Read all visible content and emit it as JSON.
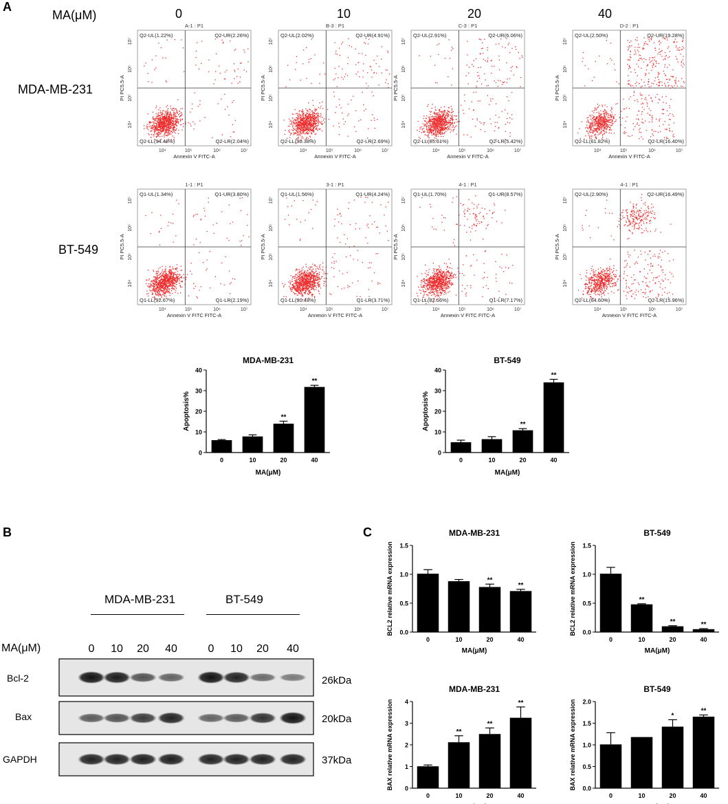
{
  "figure": {
    "panel_a": {
      "letter": "A",
      "ma_label": "MA(μM)",
      "doses": [
        "0",
        "10",
        "20",
        "40"
      ],
      "flow": {
        "x_axis_label": "Annexin V FITC-A",
        "y_axis_label": "PI PC5.5-A",
        "tick_labels": [
          "10⁴",
          "10⁵",
          "10⁶",
          "10⁷"
        ],
        "rows": [
          {
            "cell_line": "MDA-MB-231",
            "plots": [
              {
                "title": "A-1 : P1",
                "ul": "Q2-UL(1.22%)",
                "ur": "Q2-UR(2.26%)",
                "ll": "Q2-LL(94.48%)",
                "lr": "Q2-LR(2.04%)"
              },
              {
                "title": "B-3 : P1",
                "ul": "Q2-UL(2.02%)",
                "ur": "Q2-UR(4.91%)",
                "ll": "Q2-LL(90.38%)",
                "lr": "Q2-LR(2.69%)"
              },
              {
                "title": "C-3 : P1",
                "ul": "Q2-UL(2.91%)",
                "ur": "Q2-UR(6.06%)",
                "ll": "Q2-LL(85.61%)",
                "lr": "Q2-LR(5.42%)"
              },
              {
                "title": "D-2 : P1",
                "ul": "Q2-UL(2.50%)",
                "ur": "Q2-UR(19.28%)",
                "ll": "Q2-LL(61.82%)",
                "lr": "Q2-LR(16.40%)"
              }
            ]
          },
          {
            "cell_line": "BT-549",
            "x_axis_label": "Annexin V FITC FITC-A",
            "plots": [
              {
                "title": "1-1 : P1",
                "ul": "Q1-UL(1.34%)",
                "ur": "Q1-UR(3.80%)",
                "ll": "Q1-LL(92.67%)",
                "lr": "Q1-LR(2.19%)"
              },
              {
                "title": "3-1 : P1",
                "ul": "Q1-UL(1.56%)",
                "ur": "Q1-UR(4.24%)",
                "ll": "Q1-LL(90.48%)",
                "lr": "Q1-LR(3.71%)"
              },
              {
                "title": "4-1 : P1",
                "ul": "Q1-UL(1.70%)",
                "ur": "Q1-UR(8.57%)",
                "ll": "Q1-LL(82.56%)",
                "lr": "Q1-LR(7.17%)"
              },
              {
                "title": "4-1 : P1",
                "ul": "Q2-UL(2.90%)",
                "ur": "Q2-UR(16.49%)",
                "ll": "Q2-LL(64.60%)",
                "lr": "Q2-LR(15.96%)"
              }
            ]
          }
        ]
      }
    },
    "panel_b": {
      "letter": "B",
      "ma_label": "MA(μM)",
      "groups": [
        "MDA-MB-231",
        "BT-549"
      ],
      "lanes": [
        "0",
        "10",
        "20",
        "40",
        "0",
        "10",
        "20",
        "40"
      ],
      "proteins": [
        {
          "name": "Bcl-2",
          "kda": "26kDa",
          "intensity": [
            1.0,
            0.95,
            0.6,
            0.5,
            1.0,
            0.9,
            0.45,
            0.35
          ]
        },
        {
          "name": "Bax",
          "kda": "20kDa",
          "intensity": [
            0.55,
            0.6,
            0.75,
            0.9,
            0.5,
            0.55,
            0.8,
            1.0
          ]
        },
        {
          "name": "GAPDH",
          "kda": "37kDa",
          "intensity": [
            0.9,
            0.9,
            0.92,
            0.92,
            0.9,
            0.9,
            0.9,
            0.9
          ]
        }
      ]
    },
    "panel_c": {
      "letter": "C"
    }
  },
  "chart_data": [
    {
      "type": "bar",
      "id": "apoptosis-mda",
      "title": "MDA-MB-231",
      "xlabel": "MA(μM)",
      "ylabel": "Apoptosis%",
      "categories": [
        "0",
        "10",
        "20",
        "40"
      ],
      "values": [
        6,
        7.8,
        14,
        31.8
      ],
      "errors": [
        0.3,
        0.8,
        1.2,
        0.8
      ],
      "significance": [
        "",
        "",
        "**",
        "**"
      ],
      "ylim": [
        0,
        40
      ],
      "yticks": [
        "0",
        "10",
        "20",
        "30",
        "40"
      ]
    },
    {
      "type": "bar",
      "id": "apoptosis-bt",
      "title": "BT-549",
      "xlabel": "MA(μM)",
      "ylabel": "Apoptosis%",
      "categories": [
        "0",
        "10",
        "20",
        "40"
      ],
      "values": [
        5,
        6.5,
        10.8,
        34
      ],
      "errors": [
        1.0,
        1.2,
        0.8,
        1.5
      ],
      "significance": [
        "",
        "",
        "**",
        "**"
      ],
      "ylim": [
        0,
        40
      ],
      "yticks": [
        "0",
        "10",
        "20",
        "30",
        "40"
      ]
    },
    {
      "type": "bar",
      "id": "bcl2-mda",
      "title": "MDA-MB-231",
      "xlabel": "MA(μM)",
      "ylabel": "BCL2 relative mRNA expression",
      "categories": [
        "0",
        "10",
        "20",
        "40"
      ],
      "values": [
        1.01,
        0.88,
        0.78,
        0.71
      ],
      "errors": [
        0.07,
        0.03,
        0.05,
        0.03
      ],
      "significance": [
        "",
        "",
        "**",
        "**"
      ],
      "ylim": [
        0,
        1.5
      ],
      "yticks": [
        "0.0",
        "0.5",
        "1.0",
        "1.5"
      ]
    },
    {
      "type": "bar",
      "id": "bcl2-bt",
      "title": "BT-549",
      "xlabel": "MA(μM)",
      "ylabel": "BCL2 relative mRNA expression",
      "categories": [
        "0",
        "10",
        "20",
        "40"
      ],
      "values": [
        1.01,
        0.48,
        0.1,
        0.05
      ],
      "errors": [
        0.11,
        0.01,
        0.01,
        0.01
      ],
      "significance": [
        "",
        "**",
        "**",
        "**"
      ],
      "ylim": [
        0,
        1.5
      ],
      "yticks": [
        "0.0",
        "0.5",
        "1.0",
        "1.5"
      ]
    },
    {
      "type": "bar",
      "id": "bax-mda",
      "title": "MDA-MB-231",
      "xlabel": "MA(μM)",
      "ylabel": "BAX relative mRNA expression",
      "categories": [
        "0",
        "10",
        "20",
        "40"
      ],
      "values": [
        1.01,
        2.12,
        2.5,
        3.25
      ],
      "errors": [
        0.06,
        0.3,
        0.28,
        0.5
      ],
      "significance": [
        "",
        "**",
        "**",
        "**"
      ],
      "ylim": [
        0,
        4
      ],
      "yticks": [
        "0",
        "1",
        "2",
        "3",
        "4"
      ]
    },
    {
      "type": "bar",
      "id": "bax-bt",
      "title": "BT-549",
      "xlabel": "MA(μM)",
      "ylabel": "BAX relative mRNA expression",
      "categories": [
        "0",
        "10",
        "20",
        "40"
      ],
      "values": [
        1.01,
        1.18,
        1.42,
        1.65
      ],
      "errors": [
        0.27,
        0.0,
        0.16,
        0.04
      ],
      "significance": [
        "",
        "",
        "*",
        "**"
      ],
      "ylim": [
        0,
        2.0
      ],
      "yticks": [
        "0.0",
        "0.5",
        "1.0",
        "1.5",
        "2.0"
      ]
    }
  ]
}
